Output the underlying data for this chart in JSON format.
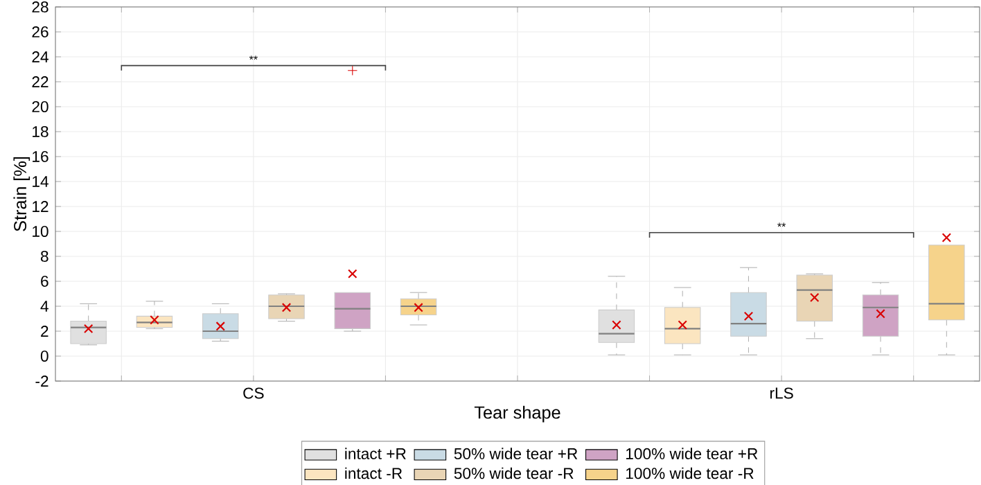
{
  "chart_data": {
    "type": "box",
    "xlabel": "Tear shape",
    "ylabel": "Strain [%]",
    "categories": [
      "CS",
      "rLS"
    ],
    "ylim": [
      -2,
      28
    ],
    "yticks": [
      -2,
      0,
      2,
      4,
      6,
      8,
      10,
      12,
      14,
      16,
      18,
      20,
      22,
      24,
      26,
      28
    ],
    "grid": true,
    "legend": "bottom",
    "annotations": [
      "**",
      "**"
    ],
    "series": [
      {
        "name": "intact +R",
        "color": "#e0e0e0",
        "boxes": [
          {
            "low": 0.9,
            "q1": 1.0,
            "median": 2.3,
            "q3": 2.8,
            "high": 4.2,
            "mean": 2.2
          },
          {
            "low": 0.1,
            "q1": 1.1,
            "median": 1.8,
            "q3": 3.7,
            "high": 6.4,
            "mean": 2.5
          }
        ]
      },
      {
        "name": "intact -R",
        "color": "#fbe5c0",
        "boxes": [
          {
            "low": 2.2,
            "q1": 2.3,
            "median": 2.7,
            "q3": 3.2,
            "high": 4.4,
            "mean": 2.9
          },
          {
            "low": 0.1,
            "q1": 1.0,
            "median": 2.2,
            "q3": 3.9,
            "high": 5.5,
            "mean": 2.5
          }
        ]
      },
      {
        "name": "50% wide tear +R",
        "color": "#c9dbe5",
        "boxes": [
          {
            "low": 1.2,
            "q1": 1.4,
            "median": 2.0,
            "q3": 3.4,
            "high": 4.2,
            "mean": 2.4
          },
          {
            "low": 0.1,
            "q1": 1.6,
            "median": 2.6,
            "q3": 5.1,
            "high": 7.1,
            "mean": 3.2
          }
        ]
      },
      {
        "name": "50% wide tear -R",
        "color": "#e9d5b5",
        "boxes": [
          {
            "low": 2.8,
            "q1": 3.0,
            "median": 4.0,
            "q3": 4.9,
            "high": 5.0,
            "mean": 3.9
          },
          {
            "low": 1.4,
            "q1": 2.8,
            "median": 5.3,
            "q3": 6.5,
            "high": 6.6,
            "mean": 4.7
          }
        ]
      },
      {
        "name": "100% wide tear +R",
        "color": "#cfa3c4",
        "boxes": [
          {
            "low": 2.0,
            "q1": 2.2,
            "median": 3.8,
            "q3": 5.1,
            "high": 5.1,
            "mean": 6.6,
            "outliers": [
              22.9
            ]
          },
          {
            "low": 0.1,
            "q1": 1.6,
            "median": 3.9,
            "q3": 4.9,
            "high": 5.9,
            "mean": 3.4
          }
        ]
      },
      {
        "name": "100% wide tear -R",
        "color": "#f6d38b",
        "boxes": [
          {
            "low": 2.5,
            "q1": 3.3,
            "median": 4.0,
            "q3": 4.6,
            "high": 5.1,
            "mean": 3.9
          },
          {
            "low": 0.1,
            "q1": 2.9,
            "median": 4.2,
            "q3": 8.9,
            "high": 8.9,
            "mean": 9.5
          }
        ]
      }
    ]
  }
}
